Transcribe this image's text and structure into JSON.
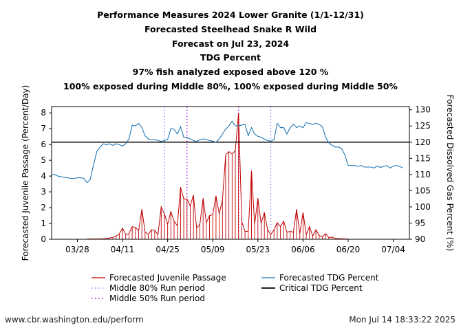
{
  "header": {
    "title_lines": [
      "Performance Measures 2024 Lower Granite (1/1-12/31)",
      "Forecasted Steelhead Snake R Wild",
      "Forecast on Jul 23, 2024",
      "TDG Percent",
      "97% fish analyzed exposed above 120 %",
      "100% exposed during Middle 80%, 100% exposed during Middle 50%"
    ]
  },
  "footer": {
    "left": "www.cbr.washington.edu/perform",
    "right": "Mon Jul 14 18:33:22 2025"
  },
  "chart_data": {
    "type": "line",
    "x_start": "03/20",
    "x_end": "07/09",
    "xticks": [
      "03/28",
      "04/11",
      "04/25",
      "05/09",
      "05/23",
      "06/06",
      "06/20",
      "07/04"
    ],
    "ylabel": "Forecasted Juvenile Passage (Percent/Day)",
    "y2label": "Forecasted Dissolved Gas Percent (%)",
    "ylim": [
      0,
      8.4
    ],
    "y2lim": [
      90,
      131
    ],
    "yticks": [
      0,
      1,
      2,
      3,
      4,
      5,
      6,
      7,
      8
    ],
    "y2ticks": [
      90,
      95,
      100,
      105,
      110,
      115,
      120,
      125,
      130
    ],
    "series": [
      {
        "name": "Forecasted Juvenile Passage",
        "axis": "left",
        "style": "impulse",
        "color": "#c00000",
        "points": [
          [
            "03/31",
            0.02
          ],
          [
            "04/01",
            0.02
          ],
          [
            "04/02",
            0.02
          ],
          [
            "04/03",
            0.02
          ],
          [
            "04/04",
            0.02
          ],
          [
            "04/05",
            0.03
          ],
          [
            "04/06",
            0.05
          ],
          [
            "04/07",
            0.08
          ],
          [
            "04/08",
            0.12
          ],
          [
            "04/09",
            0.2
          ],
          [
            "04/10",
            0.35
          ],
          [
            "04/11",
            0.7
          ],
          [
            "04/12",
            0.3
          ],
          [
            "04/13",
            0.35
          ],
          [
            "04/14",
            0.8
          ],
          [
            "04/15",
            0.75
          ],
          [
            "04/16",
            0.55
          ],
          [
            "04/17",
            1.9
          ],
          [
            "04/18",
            0.45
          ],
          [
            "04/19",
            0.3
          ],
          [
            "04/20",
            0.6
          ],
          [
            "04/21",
            0.55
          ],
          [
            "04/22",
            0.3
          ],
          [
            "04/23",
            2.05
          ],
          [
            "04/24",
            1.6
          ],
          [
            "04/25",
            0.95
          ],
          [
            "04/26",
            1.75
          ],
          [
            "04/27",
            1.15
          ],
          [
            "04/28",
            0.85
          ],
          [
            "04/29",
            3.3
          ],
          [
            "04/30",
            2.55
          ],
          [
            "05/01",
            2.55
          ],
          [
            "05/02",
            2.1
          ],
          [
            "05/03",
            2.8
          ],
          [
            "05/04",
            0.7
          ],
          [
            "05/05",
            0.95
          ],
          [
            "05/06",
            2.6
          ],
          [
            "05/07",
            1.05
          ],
          [
            "05/08",
            1.5
          ],
          [
            "05/09",
            1.55
          ],
          [
            "05/10",
            2.75
          ],
          [
            "05/11",
            1.6
          ],
          [
            "05/12",
            2.5
          ],
          [
            "05/13",
            5.35
          ],
          [
            "05/14",
            5.55
          ],
          [
            "05/15",
            5.4
          ],
          [
            "05/16",
            5.6
          ],
          [
            "05/17",
            8.0
          ],
          [
            "05/18",
            1.1
          ],
          [
            "05/19",
            0.5
          ],
          [
            "05/20",
            0.5
          ],
          [
            "05/21",
            4.35
          ],
          [
            "05/22",
            0.95
          ],
          [
            "05/23",
            2.6
          ],
          [
            "05/24",
            1.0
          ],
          [
            "05/25",
            1.7
          ],
          [
            "05/26",
            0.6
          ],
          [
            "05/27",
            0.3
          ],
          [
            "05/28",
            0.6
          ],
          [
            "05/29",
            1.05
          ],
          [
            "05/30",
            0.8
          ],
          [
            "05/31",
            1.15
          ],
          [
            "06/01",
            0.45
          ],
          [
            "06/02",
            0.5
          ],
          [
            "06/03",
            0.45
          ],
          [
            "06/04",
            1.9
          ],
          [
            "06/05",
            0.35
          ],
          [
            "06/06",
            1.7
          ],
          [
            "06/07",
            0.3
          ],
          [
            "06/08",
            0.8
          ],
          [
            "06/09",
            0.2
          ],
          [
            "06/10",
            0.6
          ],
          [
            "06/11",
            0.25
          ],
          [
            "06/12",
            0.15
          ],
          [
            "06/13",
            0.35
          ],
          [
            "06/14",
            0.1
          ],
          [
            "06/15",
            0.15
          ],
          [
            "06/16",
            0.05
          ],
          [
            "06/17",
            0.04
          ],
          [
            "06/18",
            0.03
          ],
          [
            "06/19",
            0.02
          ],
          [
            "06/20",
            0.02
          ]
        ]
      },
      {
        "name": "Forecasted TDG Percent",
        "axis": "right",
        "style": "line",
        "color": "#1f77b4",
        "points": [
          [
            "03/20",
            110.0
          ],
          [
            "03/21",
            110.0
          ],
          [
            "03/22",
            109.5
          ],
          [
            "03/23",
            109.3
          ],
          [
            "03/24",
            109.1
          ],
          [
            "03/25",
            109.0
          ],
          [
            "03/26",
            108.8
          ],
          [
            "03/27",
            108.8
          ],
          [
            "03/28",
            109.0
          ],
          [
            "03/29",
            109.0
          ],
          [
            "03/30",
            108.8
          ],
          [
            "03/31",
            107.5
          ],
          [
            "04/01",
            108.5
          ],
          [
            "04/02",
            113.0
          ],
          [
            "04/03",
            117.0
          ],
          [
            "04/04",
            118.5
          ],
          [
            "04/05",
            119.5
          ],
          [
            "04/06",
            119.2
          ],
          [
            "04/07",
            119.5
          ],
          [
            "04/08",
            119.0
          ],
          [
            "04/09",
            119.5
          ],
          [
            "04/10",
            119.2
          ],
          [
            "04/11",
            118.8
          ],
          [
            "04/12",
            119.5
          ],
          [
            "04/13",
            121.0
          ],
          [
            "04/14",
            125.2
          ],
          [
            "04/15",
            125.0
          ],
          [
            "04/16",
            125.8
          ],
          [
            "04/17",
            124.5
          ],
          [
            "04/18",
            122.0
          ],
          [
            "04/19",
            121.0
          ],
          [
            "04/20",
            120.8
          ],
          [
            "04/21",
            120.8
          ],
          [
            "04/22",
            120.5
          ],
          [
            "04/23",
            120.2
          ],
          [
            "04/24",
            120.5
          ],
          [
            "04/25",
            120.8
          ],
          [
            "04/26",
            124.2
          ],
          [
            "04/27",
            124.0
          ],
          [
            "04/28",
            122.5
          ],
          [
            "04/29",
            124.8
          ],
          [
            "04/30",
            121.5
          ],
          [
            "05/01",
            121.5
          ],
          [
            "05/02",
            121.0
          ],
          [
            "05/03",
            120.5
          ],
          [
            "05/04",
            120.2
          ],
          [
            "05/05",
            120.8
          ],
          [
            "05/06",
            121.0
          ],
          [
            "05/07",
            120.8
          ],
          [
            "05/08",
            120.5
          ],
          [
            "05/09",
            120.3
          ],
          [
            "05/10",
            120.0
          ],
          [
            "05/11",
            121.0
          ],
          [
            "05/12",
            122.5
          ],
          [
            "05/13",
            124.0
          ],
          [
            "05/14",
            125.0
          ],
          [
            "05/15",
            126.5
          ],
          [
            "05/16",
            125.0
          ],
          [
            "05/17",
            125.0
          ],
          [
            "05/18",
            125.3
          ],
          [
            "05/19",
            125.5
          ],
          [
            "05/20",
            122.0
          ],
          [
            "05/21",
            124.5
          ],
          [
            "05/22",
            122.5
          ],
          [
            "05/23",
            121.8
          ],
          [
            "05/24",
            121.5
          ],
          [
            "05/25",
            121.0
          ],
          [
            "05/26",
            120.5
          ],
          [
            "05/27",
            120.3
          ],
          [
            "05/28",
            120.8
          ],
          [
            "05/29",
            125.8
          ],
          [
            "05/30",
            124.5
          ],
          [
            "05/31",
            124.5
          ],
          [
            "06/01",
            122.5
          ],
          [
            "06/02",
            124.5
          ],
          [
            "06/03",
            125.5
          ],
          [
            "06/04",
            124.5
          ],
          [
            "06/05",
            125.0
          ],
          [
            "06/06",
            124.5
          ],
          [
            "06/07",
            126.0
          ],
          [
            "06/08",
            125.8
          ],
          [
            "06/09",
            125.5
          ],
          [
            "06/10",
            125.8
          ],
          [
            "06/11",
            125.5
          ],
          [
            "06/12",
            124.8
          ],
          [
            "06/13",
            121.5
          ],
          [
            "06/14",
            119.8
          ],
          [
            "06/15",
            119.0
          ],
          [
            "06/16",
            118.5
          ],
          [
            "06/17",
            118.5
          ],
          [
            "06/18",
            118.0
          ],
          [
            "06/19",
            116.0
          ],
          [
            "06/20",
            112.8
          ],
          [
            "06/21",
            112.8
          ],
          [
            "06/22",
            112.8
          ],
          [
            "06/23",
            112.5
          ],
          [
            "06/24",
            112.8
          ],
          [
            "06/25",
            112.3
          ],
          [
            "06/26",
            112.3
          ],
          [
            "06/27",
            112.3
          ],
          [
            "06/28",
            112.0
          ],
          [
            "06/29",
            112.6
          ],
          [
            "06/30",
            112.2
          ],
          [
            "07/01",
            112.5
          ],
          [
            "07/02",
            112.8
          ],
          [
            "07/03",
            112.0
          ],
          [
            "07/04",
            112.6
          ],
          [
            "07/05",
            112.8
          ],
          [
            "07/06",
            112.5
          ],
          [
            "07/07",
            112.0
          ]
        ]
      }
    ],
    "critical_tdg": {
      "name": "Critical TDG Percent",
      "value": 120,
      "color": "#000000"
    },
    "run_periods": [
      {
        "name": "Middle 80% Run period",
        "color": "#8080ff",
        "dates": [
          "04/24",
          "05/27"
        ]
      },
      {
        "name": "Middle 50% Run period",
        "color": "#9400d3",
        "dates": [
          "05/01",
          "05/17"
        ]
      }
    ],
    "legend_position": "bottom",
    "grid": false
  }
}
